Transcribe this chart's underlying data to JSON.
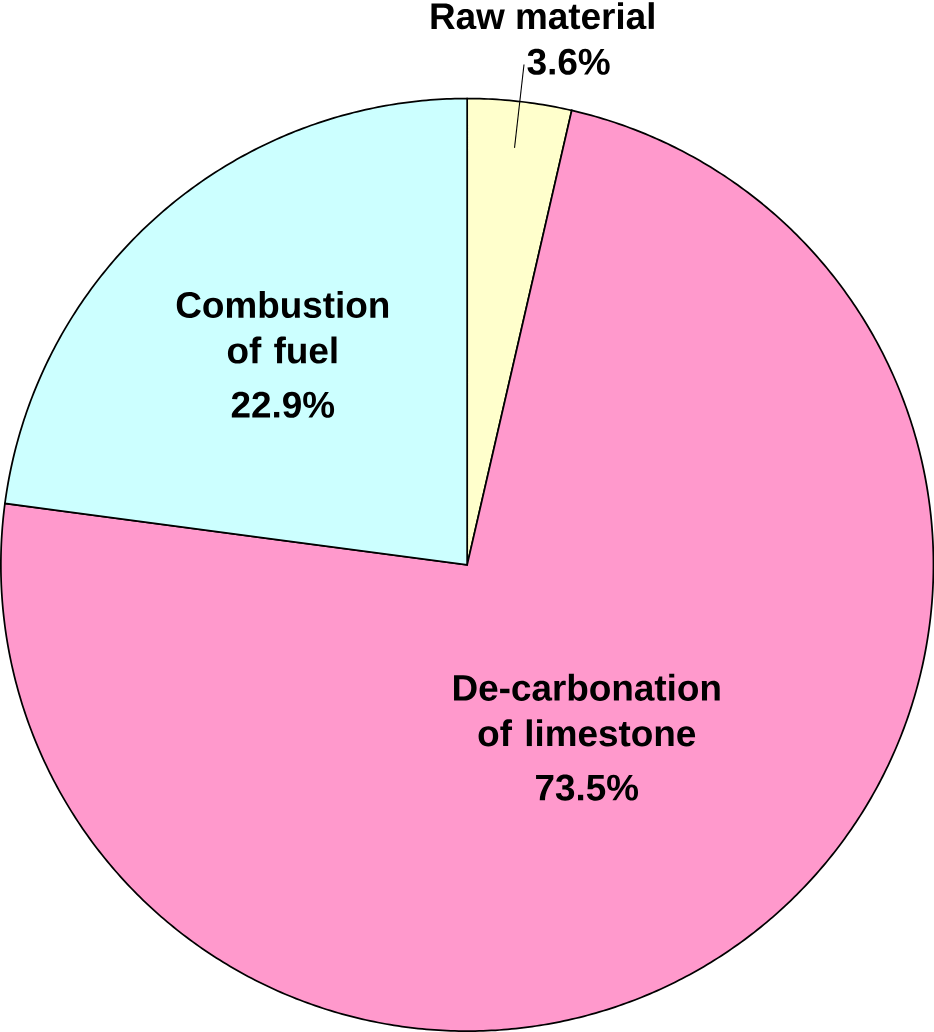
{
  "chart_data": {
    "type": "pie",
    "categories": [
      "Raw material",
      "De-carbonation of limestone",
      "Combustion of fuel"
    ],
    "values": [
      3.6,
      73.5,
      22.9
    ],
    "colors": [
      "#ffffcc",
      "#ff99cc",
      "#ccffff"
    ],
    "value_labels": [
      "3.6%",
      "73.5%",
      "22.9%"
    ]
  }
}
